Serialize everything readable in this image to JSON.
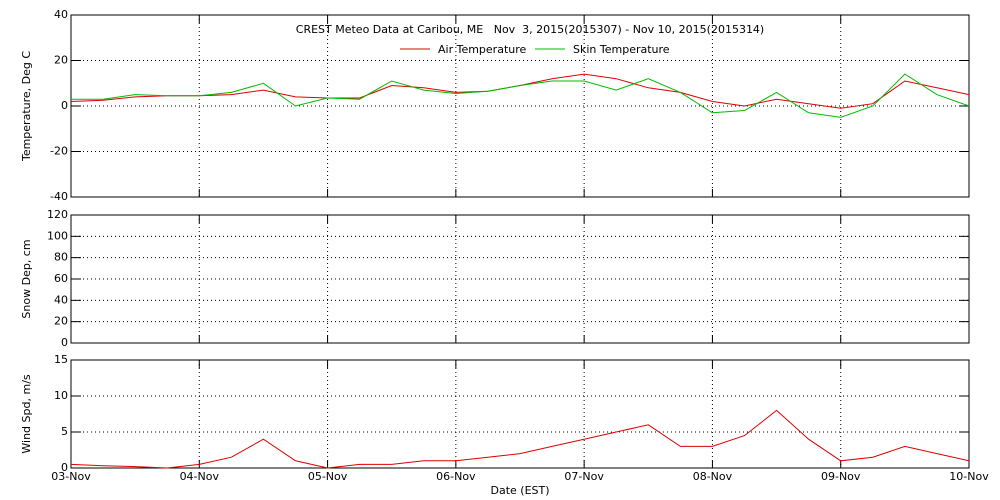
{
  "chart_data": [
    {
      "type": "line",
      "title": "CREST Meteo Data at Caribou, ME   Nov  3, 2015(2015307) - Nov 10, 2015(2015314)",
      "y_label": "Temperature, Deg C",
      "xlim": [
        0,
        7
      ],
      "ylim": [
        -40,
        40
      ],
      "yticks": [
        -40,
        -20,
        0,
        20,
        40
      ],
      "grid": true,
      "x": [
        0,
        0.25,
        0.5,
        0.75,
        1,
        1.25,
        1.5,
        1.75,
        2,
        2.25,
        2.5,
        2.75,
        3,
        3.25,
        3.5,
        3.75,
        4,
        4.25,
        4.5,
        4.75,
        5,
        5.25,
        5.5,
        5.75,
        6,
        6.25,
        6.5,
        6.75,
        7
      ],
      "series": [
        {
          "name": "Air Temperature",
          "color": "#dd0000",
          "values": [
            2,
            2.5,
            4,
            4.5,
            4.5,
            5,
            7,
            4,
            3.5,
            3.5,
            9,
            8,
            6,
            6.5,
            9,
            12,
            14,
            12,
            8,
            6,
            2,
            0,
            3,
            1,
            -1,
            1,
            11,
            8,
            5
          ]
        },
        {
          "name": "Skin Temperature",
          "color": "#00bb00",
          "values": [
            3,
            3,
            5,
            4.5,
            4.5,
            6,
            10,
            0,
            3.5,
            3,
            11,
            7,
            5.5,
            6.5,
            9,
            11,
            11,
            7,
            12,
            6,
            -3,
            -2,
            6,
            -3,
            -5,
            0,
            14,
            5,
            0
          ]
        }
      ]
    },
    {
      "type": "line",
      "y_label": "Snow Dep, cm",
      "xlim": [
        0,
        7
      ],
      "ylim": [
        0,
        120
      ],
      "yticks": [
        0,
        20,
        40,
        60,
        80,
        100,
        120
      ],
      "grid": true
    },
    {
      "type": "line",
      "y_label": "Wind Spd, m/s",
      "x_label": "Date (EST)",
      "xlim": [
        0,
        7
      ],
      "ylim": [
        0,
        15
      ],
      "yticks": [
        0,
        5,
        10,
        15
      ],
      "grid": true,
      "xticks": [
        {
          "value": 0,
          "label": "03-Nov"
        },
        {
          "value": 1,
          "label": "04-Nov"
        },
        {
          "value": 2,
          "label": "05-Nov"
        },
        {
          "value": 3,
          "label": "06-Nov"
        },
        {
          "value": 4,
          "label": "07-Nov"
        },
        {
          "value": 5,
          "label": "08-Nov"
        },
        {
          "value": 6,
          "label": "09-Nov"
        },
        {
          "value": 7,
          "label": "10-Nov"
        }
      ],
      "x": [
        0,
        0.25,
        0.5,
        0.75,
        1,
        1.25,
        1.5,
        1.75,
        2,
        2.25,
        2.5,
        2.75,
        3,
        3.25,
        3.5,
        3.75,
        4,
        4.25,
        4.5,
        4.75,
        5,
        5.25,
        5.5,
        5.75,
        6,
        6.25,
        6.5,
        6.75,
        7
      ],
      "series": [
        {
          "color": "#dd0000",
          "values": [
            0.5,
            0.3,
            0.2,
            0,
            0.5,
            1.5,
            4,
            1,
            0,
            0.5,
            0.5,
            1,
            1,
            1.5,
            2,
            3,
            4,
            5,
            6,
            3,
            3,
            4.5,
            8,
            4,
            1,
            1.5,
            3,
            2,
            1
          ]
        }
      ]
    }
  ]
}
